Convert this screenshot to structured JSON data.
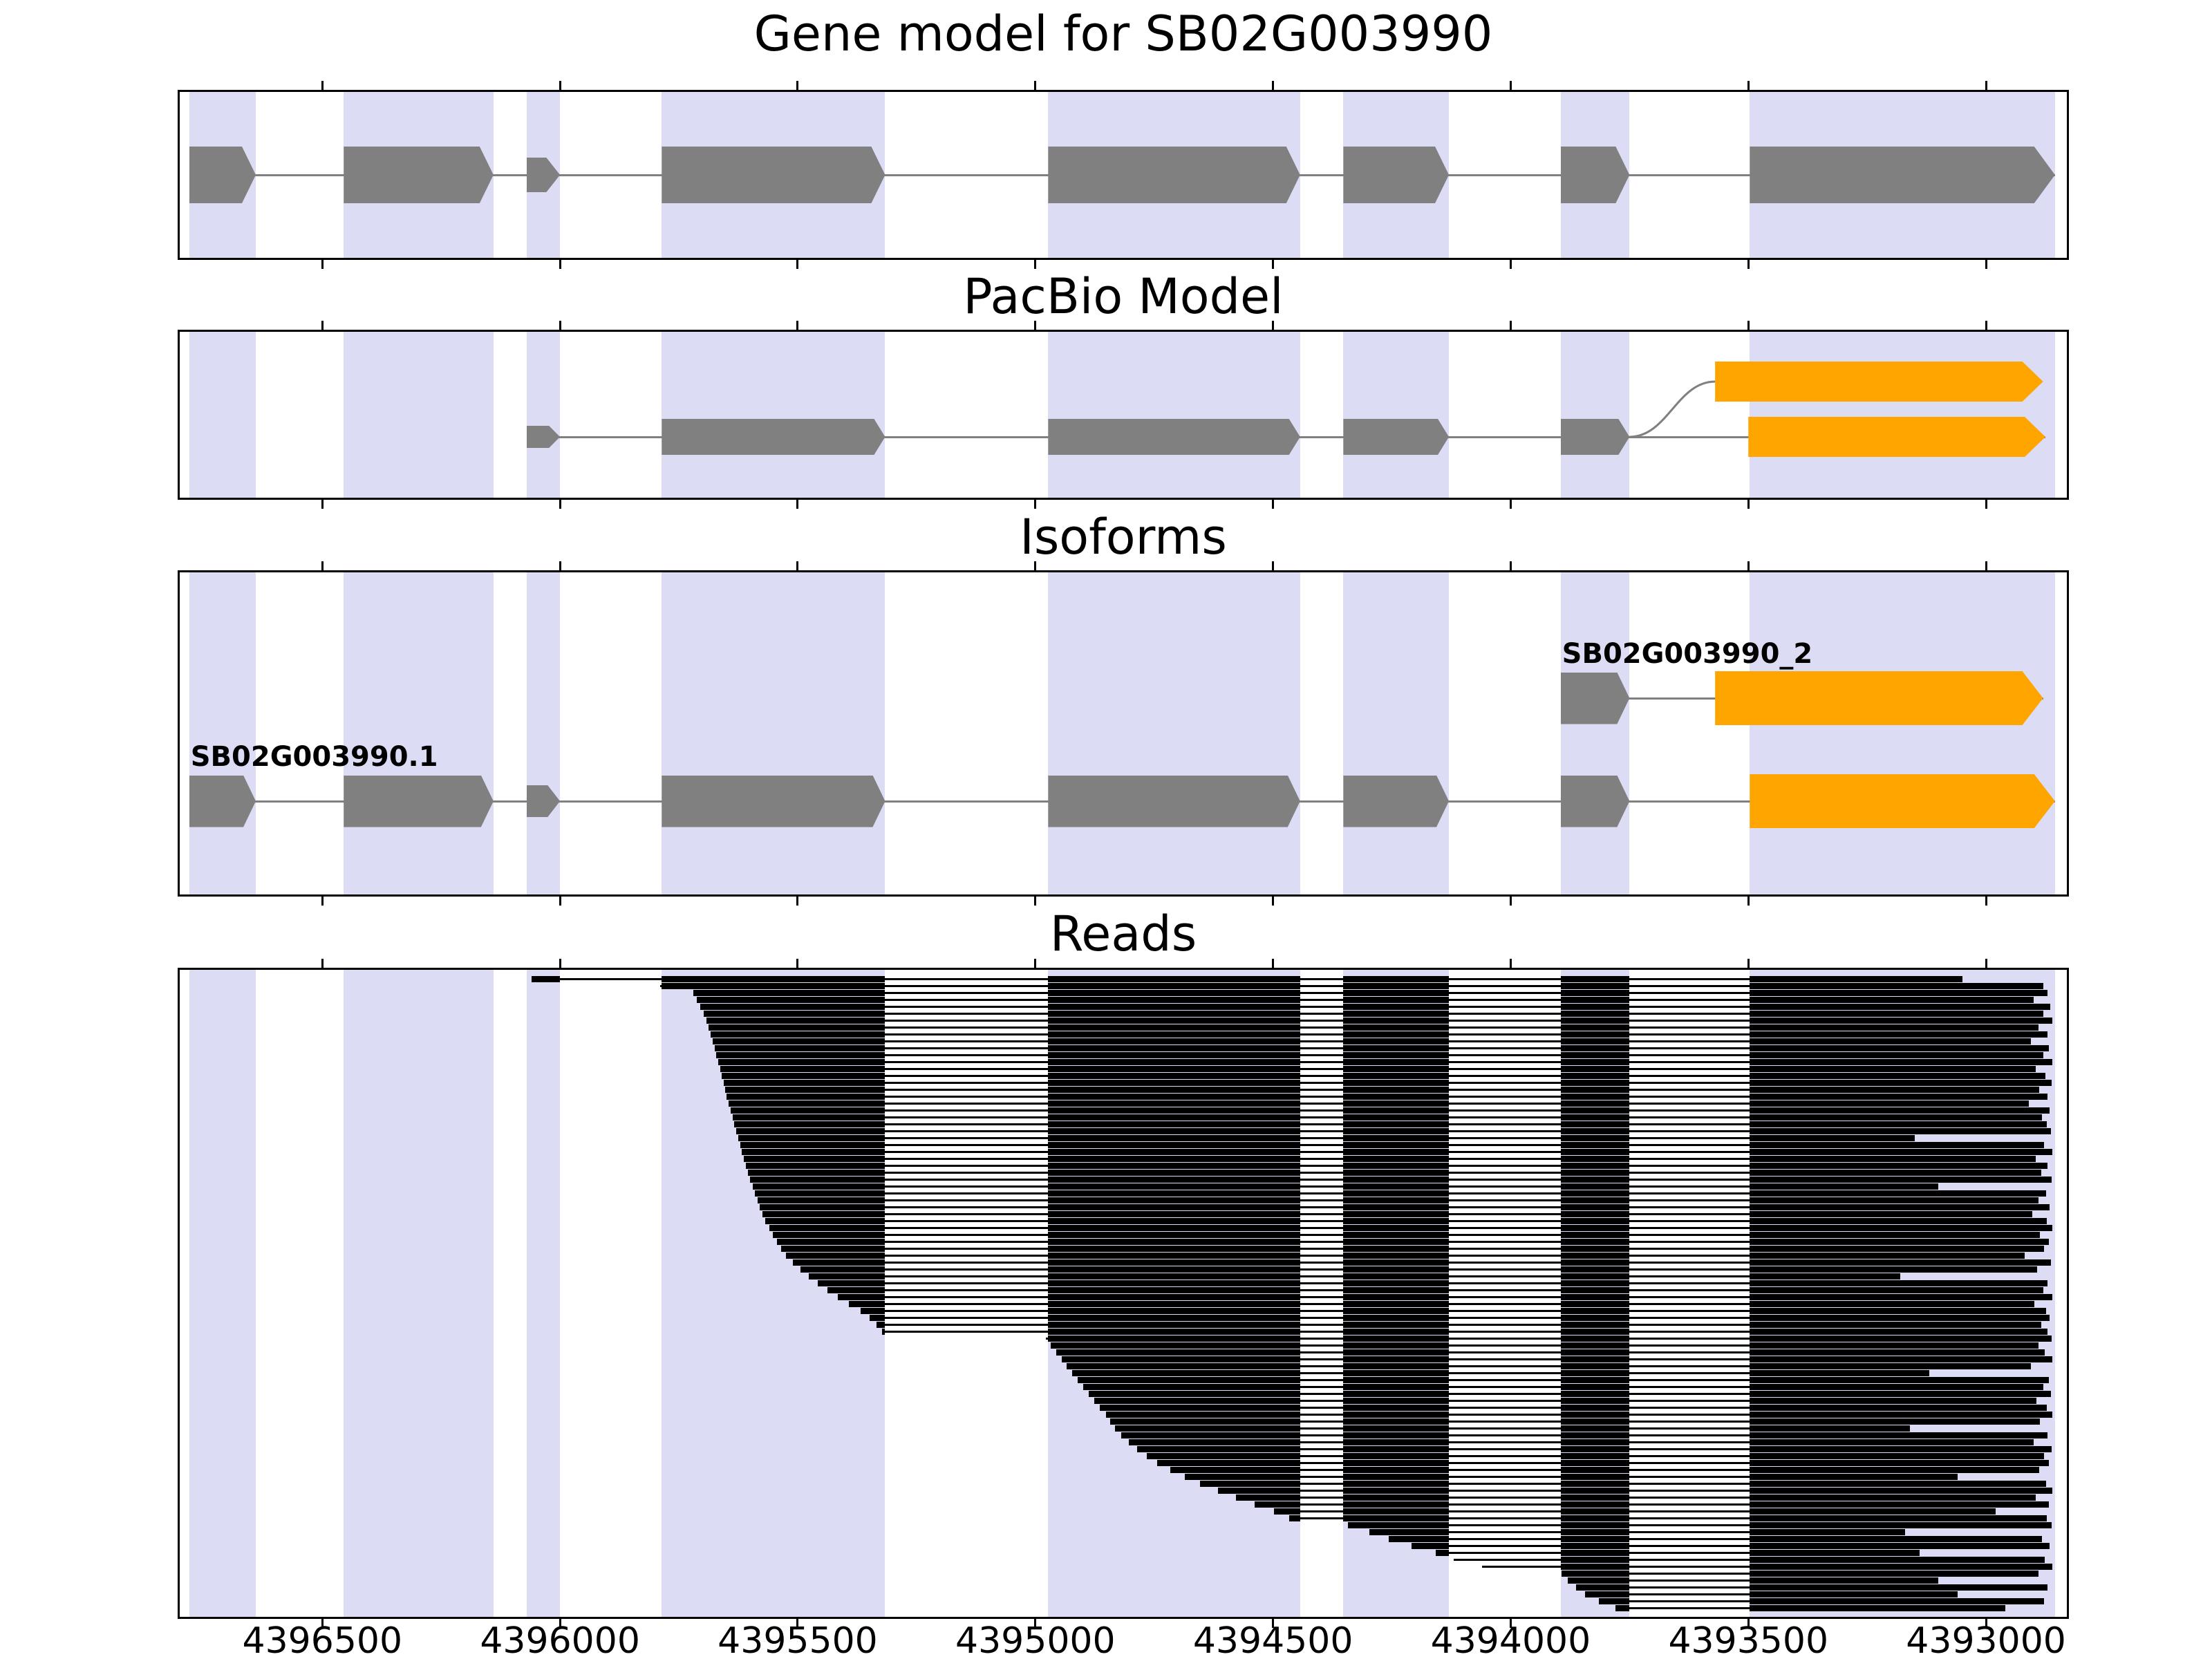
{
  "colors": {
    "band": "#DCDCF5",
    "exon_gray": "#808080",
    "exon_orange": "#FFA500",
    "intron_line": "#808080",
    "read": "#000000",
    "text": "#000000",
    "panel_border": "#000000"
  },
  "chart_data": {
    "type": "genome-browser",
    "locus": "SB02G003990",
    "panels": [
      {
        "id": "gene_model",
        "title": "Gene model for SB02G003990"
      },
      {
        "id": "pacbio",
        "title": "PacBio Model"
      },
      {
        "id": "isoforms",
        "title": "Isoforms"
      },
      {
        "id": "reads",
        "title": "Reads"
      }
    ],
    "x_axis": {
      "left_coord": 4396800,
      "right_coord": 4392830,
      "direction": "decreasing-left-to-right",
      "tick_values": [
        4396500,
        4396000,
        4395500,
        4395000,
        4394500,
        4394000,
        4393500,
        4393000
      ],
      "tick_labels": [
        "4396500",
        "4396000",
        "4395500",
        "4395000",
        "4394500",
        "4394000",
        "4393500",
        "4393000"
      ]
    },
    "exon_bands": [
      [
        4396780,
        4396640
      ],
      [
        4396455,
        4396140
      ],
      [
        4396070,
        4396000
      ],
      [
        4395786,
        4395316
      ],
      [
        4394973,
        4394443
      ],
      [
        4394352,
        4394130
      ],
      [
        4393895,
        4393750
      ],
      [
        4393497,
        4392855
      ]
    ],
    "gene_model": {
      "name": "SB02G003990",
      "strand_arrow": "right",
      "exons": [
        [
          4396780,
          4396640
        ],
        [
          4396455,
          4396140
        ],
        [
          4396070,
          4396000
        ],
        [
          4395786,
          4395316
        ],
        [
          4394973,
          4394443
        ],
        [
          4394352,
          4394130
        ],
        [
          4393895,
          4393750
        ],
        [
          4393497,
          4392855
        ]
      ]
    },
    "pacbio_model": {
      "gray_exons": [
        [
          4396070,
          4396000
        ],
        [
          4395786,
          4395316
        ],
        [
          4394973,
          4394443
        ],
        [
          4394352,
          4394130
        ],
        [
          4393895,
          4393750
        ]
      ],
      "upper_orange": [
        4393570,
        4392880
      ],
      "lower_orange": [
        4393500,
        4392875
      ]
    },
    "isoforms": [
      {
        "name": "SB02G003990_2",
        "gray_exons": [
          [
            4393895,
            4393750
          ]
        ],
        "orange_exon": [
          4393570,
          4392880
        ]
      },
      {
        "name": "SB02G003990.1",
        "gray_exons": [
          [
            4396780,
            4396640
          ],
          [
            4396455,
            4396140
          ],
          [
            4396070,
            4396000
          ],
          [
            4395786,
            4395316
          ],
          [
            4394973,
            4394443
          ],
          [
            4394352,
            4394130
          ],
          [
            4393895,
            4393750
          ]
        ],
        "orange_exon": [
          4393497,
          4392855
        ]
      }
    ],
    "reads": [
      [
        4396060,
        4393050
      ],
      [
        4395790,
        4392880
      ],
      [
        4395720,
        4392870
      ],
      [
        4395712,
        4392900
      ],
      [
        4395705,
        4392865
      ],
      [
        4395698,
        4392880
      ],
      [
        4395692,
        4392860
      ],
      [
        4395688,
        4392890
      ],
      [
        4395683,
        4392870
      ],
      [
        4395679,
        4392905
      ],
      [
        4395675,
        4392868
      ],
      [
        4395671,
        4392880
      ],
      [
        4395667,
        4392860
      ],
      [
        4395663,
        4392895
      ],
      [
        4395660,
        4392875
      ],
      [
        4395656,
        4392862
      ],
      [
        4395652,
        4392888
      ],
      [
        4395649,
        4392870
      ],
      [
        4395645,
        4392910
      ],
      [
        4395641,
        4392866
      ],
      [
        4395637,
        4392882
      ],
      [
        4395633,
        4392872
      ],
      [
        4395629,
        4392864
      ],
      [
        4395625,
        4393150
      ],
      [
        4395621,
        4392878
      ],
      [
        4395617,
        4392860
      ],
      [
        4395613,
        4392896
      ],
      [
        4395609,
        4392870
      ],
      [
        4395605,
        4392884
      ],
      [
        4395600,
        4392862
      ],
      [
        4395595,
        4393100
      ],
      [
        4395590,
        4392874
      ],
      [
        4395585,
        4392890
      ],
      [
        4395580,
        4392866
      ],
      [
        4395574,
        4392902
      ],
      [
        4395568,
        4392872
      ],
      [
        4395560,
        4392860
      ],
      [
        4395552,
        4392886
      ],
      [
        4395544,
        4392868
      ],
      [
        4395535,
        4392878
      ],
      [
        4395524,
        4392918
      ],
      [
        4395510,
        4392864
      ],
      [
        4395494,
        4392892
      ],
      [
        4395476,
        4393180
      ],
      [
        4395458,
        4392870
      ],
      [
        4395438,
        4392880
      ],
      [
        4395416,
        4392860
      ],
      [
        4395392,
        4392898
      ],
      [
        4395368,
        4392874
      ],
      [
        4395348,
        4392866
      ],
      [
        4395334,
        4392884
      ],
      [
        4395322,
        4392870
      ],
      [
        4394978,
        4392862
      ],
      [
        4394968,
        4392890
      ],
      [
        4394956,
        4392876
      ],
      [
        4394945,
        4392860
      ],
      [
        4394934,
        4392906
      ],
      [
        4394922,
        4393120
      ],
      [
        4394911,
        4392868
      ],
      [
        4394899,
        4392880
      ],
      [
        4394888,
        4392864
      ],
      [
        4394876,
        4392894
      ],
      [
        4394864,
        4392872
      ],
      [
        4394852,
        4392860
      ],
      [
        4394842,
        4392886
      ],
      [
        4394832,
        4393160
      ],
      [
        4394820,
        4392870
      ],
      [
        4394804,
        4392900
      ],
      [
        4394786,
        4392862
      ],
      [
        4394766,
        4392878
      ],
      [
        4394744,
        4392868
      ],
      [
        4394716,
        4392888
      ],
      [
        4394686,
        4393060
      ],
      [
        4394654,
        4392874
      ],
      [
        4394616,
        4392860
      ],
      [
        4394578,
        4392896
      ],
      [
        4394538,
        4392868
      ],
      [
        4394498,
        4392980
      ],
      [
        4394466,
        4392872
      ],
      [
        4394342,
        4392862
      ],
      [
        4394298,
        4393170
      ],
      [
        4394256,
        4392882
      ],
      [
        4394208,
        4392866
      ],
      [
        4394158,
        4393140
      ],
      [
        4394120,
        4392876
      ],
      [
        4394060,
        4392860
      ],
      [
        4393893,
        4392890
      ],
      [
        4393880,
        4393100
      ],
      [
        4393862,
        4392870
      ],
      [
        4393844,
        4393060
      ],
      [
        4393815,
        4392878
      ],
      [
        4393780,
        4392960
      ]
    ]
  }
}
